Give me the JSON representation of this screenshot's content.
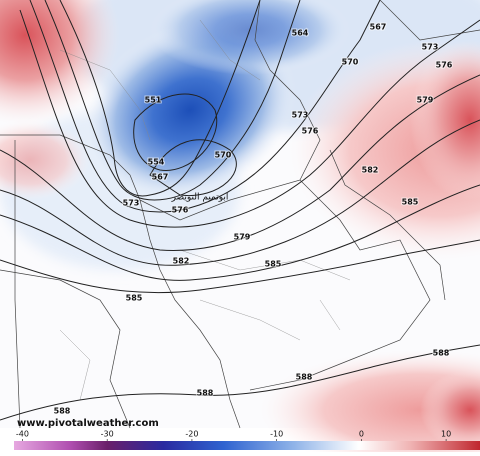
{
  "map": {
    "contour_labels": [
      564,
      567,
      573,
      570,
      576,
      551,
      579,
      573,
      576,
      570,
      554,
      567,
      582,
      573,
      576,
      579,
      585,
      582,
      585,
      585,
      588,
      588,
      588,
      588
    ],
    "place_label": "ابوتميم التويصر",
    "watermark": "www.pivotalweather.com",
    "colorbar": {
      "lim": [
        -41,
        14
      ],
      "ticks": [
        -40,
        -30,
        -20,
        -10,
        0,
        10
      ]
    }
  }
}
